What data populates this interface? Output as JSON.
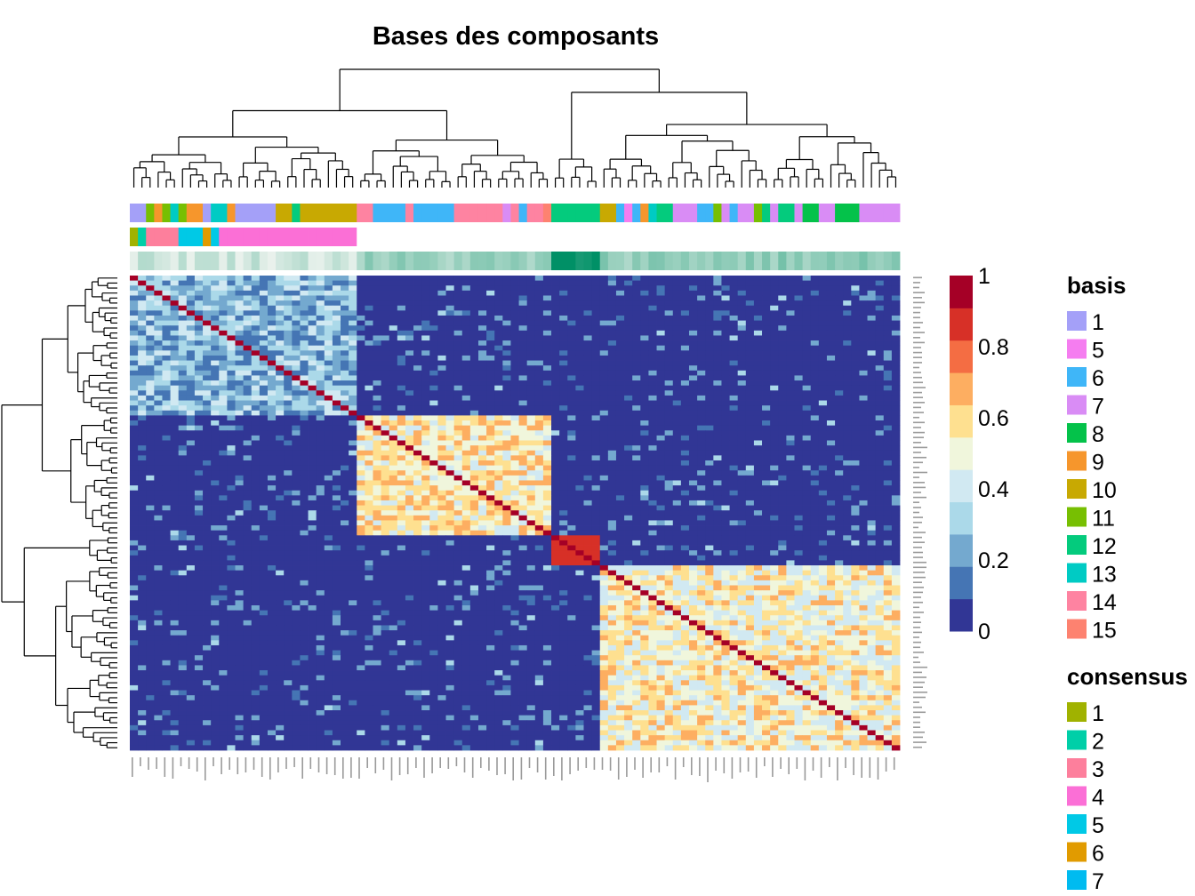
{
  "chart_data": {
    "type": "heatmap",
    "title": "Bases des composants",
    "n": 95,
    "block_boundaries": [
      28,
      52,
      58,
      95
    ],
    "block_level": [
      0.28,
      0.62,
      0.97,
      0.58
    ],
    "value_range": [
      0,
      1
    ],
    "colorbar": {
      "ticks": [
        "0",
        "0.2",
        "0.4",
        "0.6",
        "0.8",
        "1"
      ],
      "colors": [
        "#313695",
        "#4575b4",
        "#74a9cf",
        "#abd9e9",
        "#d1e9f2",
        "#f0f6dc",
        "#fee090",
        "#fdae61",
        "#f46d43",
        "#d73027",
        "#a50026"
      ]
    },
    "annotation_rows": {
      "basis": [
        "1",
        "1",
        "11",
        "9",
        "11",
        "13",
        "11",
        "9",
        "9",
        "1",
        "13",
        "13",
        "9",
        "1",
        "1",
        "1",
        "1",
        "1",
        "10",
        "10",
        "12",
        "10",
        "10",
        "10",
        "10",
        "10",
        "10",
        "10",
        "14",
        "14",
        "6",
        "6",
        "6",
        "6",
        "14",
        "6",
        "6",
        "6",
        "6",
        "6",
        "14",
        "14",
        "14",
        "14",
        "14",
        "14",
        "7",
        "14",
        "6",
        "14",
        "14",
        "15",
        "12",
        "12",
        "12",
        "12",
        "12",
        "12",
        "10",
        "10",
        "6",
        "5",
        "6",
        "9",
        "13",
        "12",
        "12",
        "7",
        "7",
        "7",
        "6",
        "6",
        "11",
        "7",
        "6",
        "7",
        "7",
        "11",
        "12",
        "7",
        "12",
        "12",
        "7",
        "8",
        "8",
        "7",
        "7",
        "8",
        "8",
        "8",
        "7",
        "7",
        "7",
        "7",
        "7"
      ],
      "consensus": [
        "1",
        "2",
        "3",
        "3",
        "3",
        "3",
        "5",
        "5",
        "5",
        "6",
        "5",
        "4",
        "4",
        "4",
        "4",
        "4",
        "4",
        "4",
        "4",
        "4",
        "4",
        "4",
        "4",
        "4",
        "4",
        "4",
        "4",
        "4",
        "",
        "",
        "",
        "",
        "",
        "",
        "",
        "",
        "",
        "",
        "",
        "",
        "",
        "",
        "",
        "",
        "",
        "",
        "",
        "",
        "",
        "",
        "",
        "",
        "",
        "",
        "",
        "",
        "",
        "",
        "",
        "",
        "",
        "",
        "",
        "",
        "",
        "",
        "",
        "",
        "",
        "",
        "",
        "",
        "",
        "",
        "",
        "",
        "",
        "",
        "",
        "",
        "",
        "",
        "",
        "",
        "",
        "",
        "",
        "",
        "",
        "",
        "",
        "",
        "",
        "",
        "",
        ""
      ]
    },
    "annotation_colors": {
      "basis": {
        "1": "#a4a0f8",
        "5": "#f57df0",
        "6": "#3fb6f8",
        "7": "#d98cf5",
        "8": "#04c24a",
        "9": "#f6962c",
        "10": "#c8a902",
        "11": "#77bf02",
        "12": "#04cb7d",
        "13": "#00cbc4",
        "14": "#fe83a1",
        "15": "#fd8270"
      },
      "consensus": {
        "1": "#a0b200",
        "2": "#00cfa8",
        "3": "#fd7f9c",
        "4": "#fb6fd6",
        "5": "#00c9e6",
        "6": "#e19b00",
        "7": "#00bbf0",
        "8": "#ff5fd5"
      }
    },
    "legend": {
      "basis": {
        "title": "basis",
        "entries": [
          "1",
          "5",
          "6",
          "7",
          "8",
          "9",
          "10",
          "11",
          "12",
          "13",
          "14",
          "15"
        ]
      },
      "consensus": {
        "title": "consensus",
        "entries": [
          "1",
          "2",
          "3",
          "4",
          "5",
          "6",
          "7"
        ]
      }
    }
  }
}
